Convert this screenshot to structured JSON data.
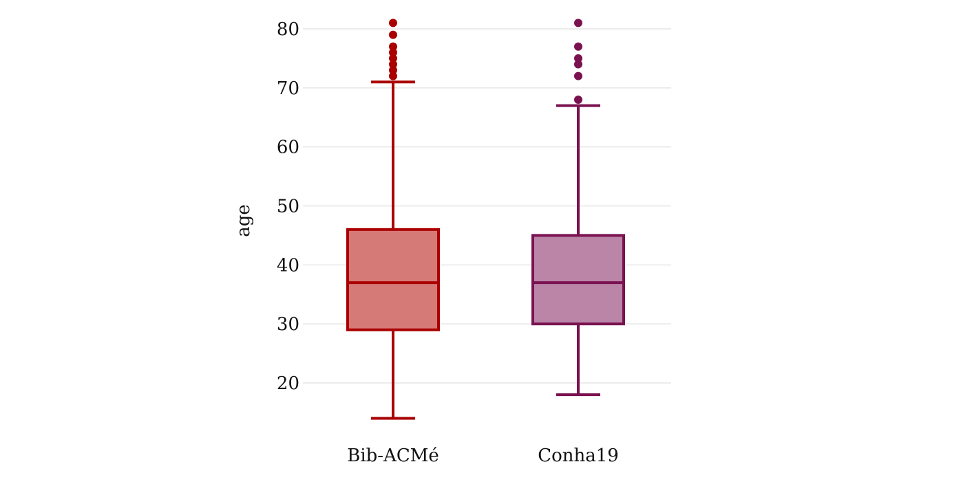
{
  "chart_data": {
    "type": "boxplot",
    "title": "",
    "xlabel": "",
    "ylabel": "age",
    "ylim": [
      12,
      83
    ],
    "yticks": [
      20,
      30,
      40,
      50,
      60,
      70,
      80
    ],
    "ytick_labels": [
      "20",
      "30",
      "40",
      "50",
      "60",
      "70",
      "80"
    ],
    "grid": true,
    "legend": "none",
    "categories": [
      "Bib-ACMé",
      "Conha19"
    ],
    "series": [
      {
        "category": "Bib-ACMé",
        "whisker_low": 14,
        "q1": 29,
        "median": 37,
        "q3": 46,
        "whisker_high": 71,
        "outliers": [
          72,
          73,
          74,
          75,
          76,
          77,
          79,
          81
        ],
        "color": "#aa0000",
        "fill": "#d67a78"
      },
      {
        "category": "Conha19",
        "whisker_low": 18,
        "q1": 30,
        "median": 37,
        "q3": 45,
        "whisker_high": 67,
        "outliers": [
          68,
          72,
          74,
          75,
          77,
          81
        ],
        "color": "#7a1250",
        "fill": "#bb85a8"
      }
    ]
  }
}
